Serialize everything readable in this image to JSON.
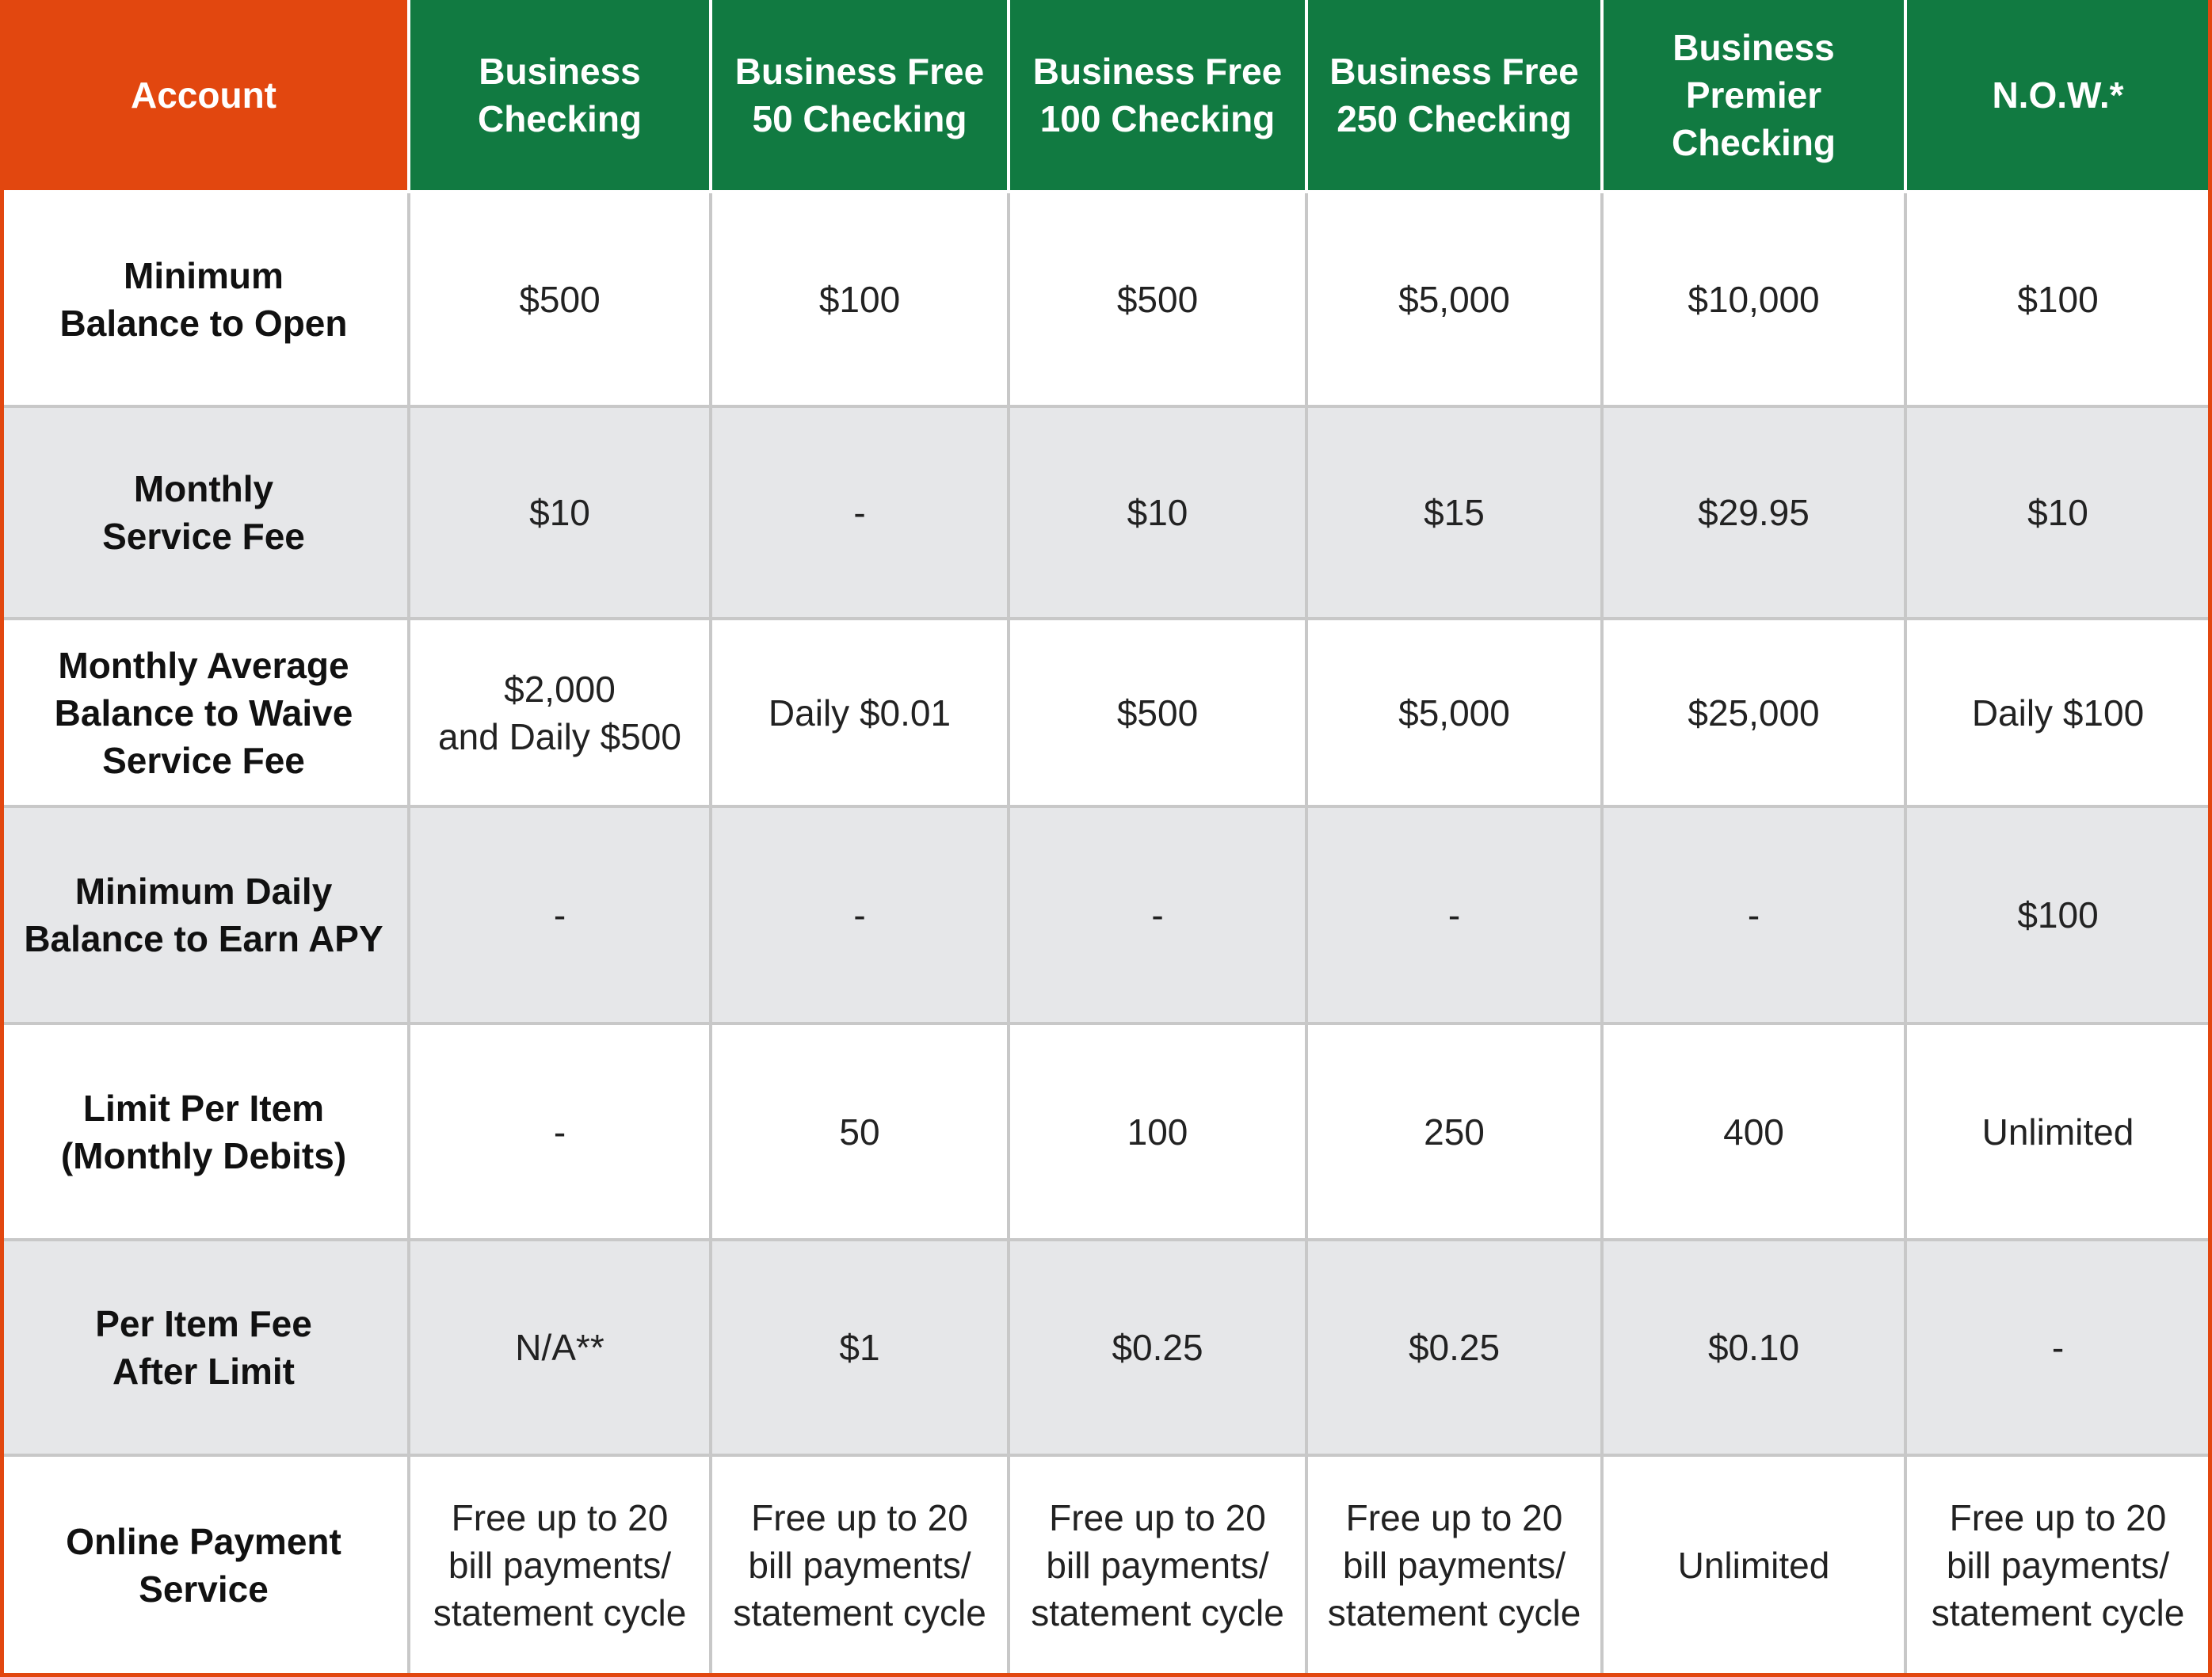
{
  "table": {
    "header": [
      "Account",
      "Business\nChecking",
      "Business Free\n50 Checking",
      "Business Free\n100 Checking",
      "Business Free\n250 Checking",
      "Business\nPremier\nChecking",
      "N.O.W.*"
    ],
    "rows": [
      [
        "Minimum\nBalance to Open",
        "$500",
        "$100",
        "$500",
        "$5,000",
        "$10,000",
        "$100"
      ],
      [
        "Monthly\nService Fee",
        "$10",
        "-",
        "$10",
        "$15",
        "$29.95",
        "$10"
      ],
      [
        "Monthly Average\nBalance to Waive\nService Fee",
        "$2,000\nand Daily $500",
        "Daily $0.01",
        "$500",
        "$5,000",
        "$25,000",
        "Daily $100"
      ],
      [
        "Minimum Daily\nBalance to Earn APY",
        "-",
        "-",
        "-",
        "-",
        "-",
        "$100"
      ],
      [
        "Limit Per Item\n(Monthly Debits)",
        "-",
        "50",
        "100",
        "250",
        "400",
        "Unlimited"
      ],
      [
        "Per Item Fee\nAfter Limit",
        "N/A**",
        "$1",
        "$0.25",
        "$0.25",
        "$0.10",
        "-"
      ],
      [
        "Online Payment\nService",
        "Free up to 20\nbill payments/\nstatement cycle",
        "Free up to 20\nbill payments/\nstatement cycle",
        "Free up to 20\nbill payments/\nstatement cycle",
        "Free up to 20\nbill payments/\nstatement cycle",
        "Unlimited",
        "Free up to 20\nbill payments/\nstatement cycle"
      ]
    ]
  }
}
